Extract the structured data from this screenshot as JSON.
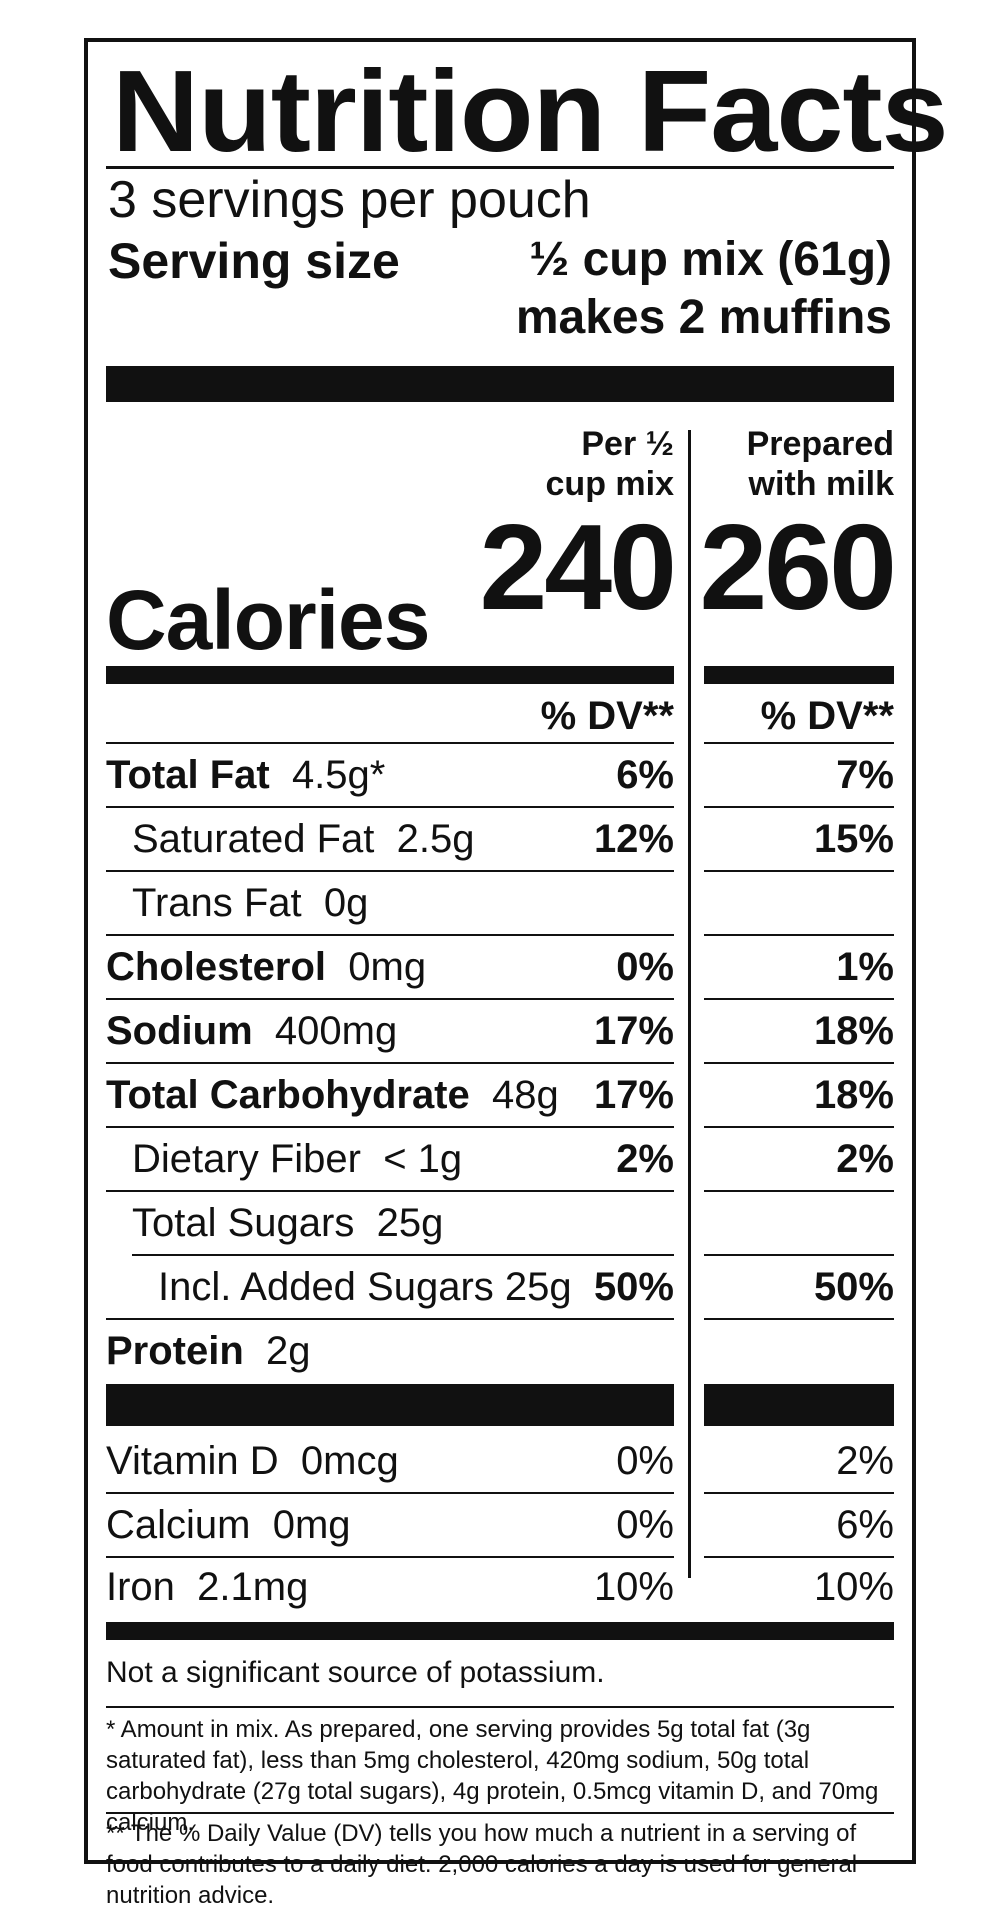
{
  "header": {
    "title": "Nutrition Facts",
    "servings_per_container": "3 servings per pouch",
    "serving_size_label": "Serving size",
    "serving_size_value": "½ cup mix (61g)",
    "serving_size_note": "makes 2 muffins"
  },
  "columns": {
    "mix_header_line1": "Per ½",
    "mix_header_line2": "cup mix",
    "prepared_header_line1": "Prepared",
    "prepared_header_line2": "with milk",
    "dv_label": "% DV**"
  },
  "calories": {
    "label": "Calories",
    "mix": "240",
    "prepared": "260"
  },
  "nutrients": [
    {
      "name": "Total Fat",
      "amount": "4.5g*",
      "mix_dv": "6%",
      "prepared_dv": "7%"
    },
    {
      "name": "Saturated Fat",
      "amount": "2.5g",
      "mix_dv": "12%",
      "prepared_dv": "15%"
    },
    {
      "name": "Trans Fat",
      "amount": "0g",
      "mix_dv": "",
      "prepared_dv": ""
    },
    {
      "name": "Cholesterol",
      "amount": "0mg",
      "mix_dv": "0%",
      "prepared_dv": "1%"
    },
    {
      "name": "Sodium",
      "amount": "400mg",
      "mix_dv": "17%",
      "prepared_dv": "18%"
    },
    {
      "name": "Total Carbohydrate",
      "amount": "48g",
      "mix_dv": "17%",
      "prepared_dv": "18%"
    },
    {
      "name": "Dietary Fiber",
      "amount": "< 1g",
      "mix_dv": "2%",
      "prepared_dv": "2%"
    },
    {
      "name": "Total Sugars",
      "amount": "25g",
      "mix_dv": "",
      "prepared_dv": ""
    },
    {
      "name": "Incl. Added Sugars",
      "amount": "25g",
      "mix_dv": "50%",
      "prepared_dv": "50%"
    },
    {
      "name": "Protein",
      "amount": "2g",
      "mix_dv": "",
      "prepared_dv": ""
    }
  ],
  "vitamins": [
    {
      "name": "Vitamin D",
      "amount": "0mcg",
      "mix_dv": "0%",
      "prepared_dv": "2%"
    },
    {
      "name": "Calcium",
      "amount": "0mg",
      "mix_dv": "0%",
      "prepared_dv": "6%"
    },
    {
      "name": "Iron",
      "amount": "2.1mg",
      "mix_dv": "10%",
      "prepared_dv": "10%"
    }
  ],
  "notes": {
    "potassium": "Not a significant source of potassium.",
    "footnote_1": "* Amount in mix. As prepared, one serving provides 5g total fat (3g saturated fat), less than 5mg cholesterol, 420mg sodium, 50g total carbohydrate (27g total sugars), 4g protein, 0.5mcg vitamin D, and 70mg calcium.",
    "footnote_2": "** The % Daily Value (DV) tells you how much a nutrient in a serving of food contributes to a daily diet. 2,000 calories a day is used for general nutrition advice."
  },
  "colors": {
    "ink": "#111111",
    "background": "#ffffff"
  }
}
